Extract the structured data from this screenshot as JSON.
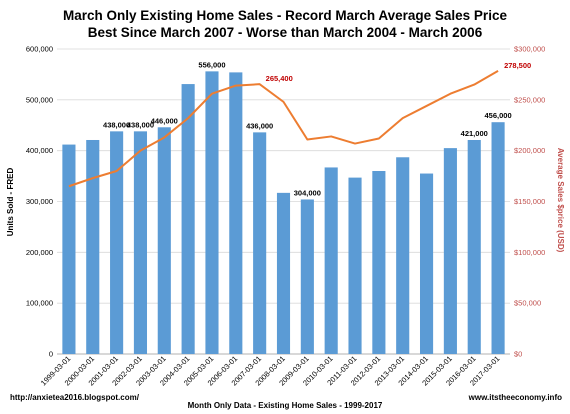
{
  "chart_data": {
    "type": "bar",
    "title": "March Only Existing Home Sales - Record March Average Sales Price",
    "subtitle": "Best Since March 2007 - Worse than March 2004 - March 2006",
    "xlabel": "Month Only Data - Existing Home Sales - 1999-2017",
    "ylabel": "Units Sold - FRED",
    "y2label": "Average Sales $price (USD)",
    "categories": [
      "1999-03-01",
      "2000-03-01",
      "2001-03-01",
      "2002-03-01",
      "2003-03-01",
      "2004-03-01",
      "2005-03-01",
      "2006-03-01",
      "2007-03-01",
      "2008-03-01",
      "2009-03-01",
      "2010-03-01",
      "2011-03-01",
      "2012-03-01",
      "2013-03-01",
      "2014-03-01",
      "2015-03-01",
      "2016-03-01",
      "2017-03-01"
    ],
    "series": [
      {
        "type": "bar",
        "axis": "left",
        "color": "#5b9bd5",
        "values": [
          412000,
          421000,
          438000,
          438000,
          446000,
          531000,
          556000,
          554000,
          436000,
          317000,
          304000,
          367000,
          347000,
          360000,
          387000,
          355000,
          405000,
          421000,
          456000
        ]
      },
      {
        "type": "line",
        "axis": "right",
        "color": "#ed7d31",
        "values": [
          165000,
          173000,
          180000,
          200000,
          213000,
          232000,
          256000,
          264000,
          265400,
          248000,
          211000,
          214000,
          207000,
          212000,
          232000,
          244000,
          256000,
          265000,
          278500
        ]
      }
    ],
    "bar_labels": [
      {
        "index": 2,
        "text": "438,000"
      },
      {
        "index": 3,
        "text": "438,000"
      },
      {
        "index": 4,
        "text": "446,000"
      },
      {
        "index": 6,
        "text": "556,000"
      },
      {
        "index": 8,
        "text": "436,000"
      },
      {
        "index": 10,
        "text": "304,000"
      },
      {
        "index": 17,
        "text": "421,000"
      },
      {
        "index": 18,
        "text": "456,000"
      }
    ],
    "line_labels": [
      {
        "index": 8,
        "text": "265,400"
      },
      {
        "index": 18,
        "text": "278,500"
      }
    ],
    "ylim": [
      0,
      600000
    ],
    "y2lim": [
      0,
      300000
    ],
    "y_ticks": [
      "0",
      "100,000",
      "200,000",
      "300,000",
      "400,000",
      "500,000",
      "600,000"
    ],
    "y2_ticks": [
      "$0",
      "$50,000",
      "$100,000",
      "$150,000",
      "$200,000",
      "$250,000",
      "$300,000"
    ],
    "grid": true
  },
  "footer": {
    "left": "http://anxietea2016.blogspot.com/",
    "right": "www.itstheeconomy.info"
  }
}
